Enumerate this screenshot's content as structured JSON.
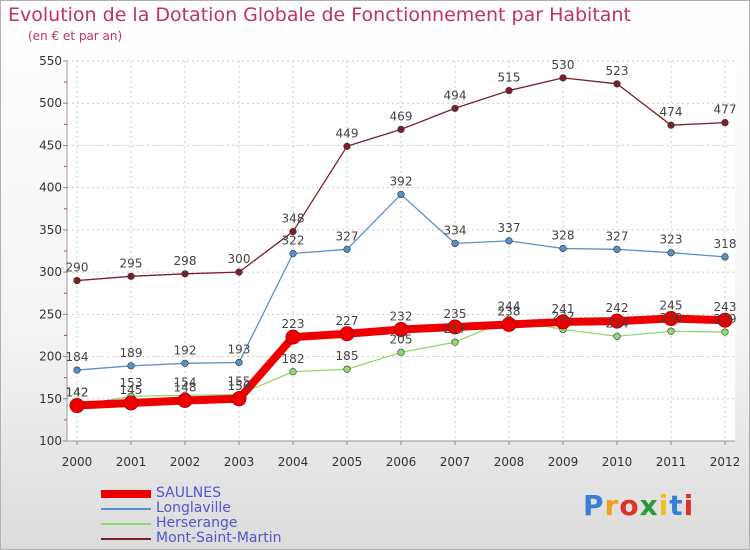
{
  "title": "Evolution de la Dotation Globale de Fonctionnement par Habitant",
  "subtitle": "(en € et par an)",
  "logo_text": "Proxiti",
  "logo_colors": [
    "#3a7fd5",
    "#f0a020",
    "#e0302a",
    "#2a9a3a",
    "#f0c020",
    "#3a7fd5",
    "#e0302a"
  ],
  "chart_data": {
    "type": "line",
    "title": "Evolution de la Dotation Globale de Fonctionnement par Habitant",
    "subtitle": "(en € et par an)",
    "xlabel": "",
    "ylabel": "",
    "ylim": [
      100,
      550
    ],
    "yticks": [
      100,
      150,
      200,
      250,
      300,
      350,
      400,
      450,
      500,
      550
    ],
    "x": [
      "2000",
      "2001",
      "2002",
      "2003",
      "2004",
      "2005",
      "2006",
      "2007",
      "2008",
      "2009",
      "2010",
      "2011",
      "2012"
    ],
    "grid": true,
    "legend_position": "bottom-left",
    "series": [
      {
        "name": "Mont-Saint-Martin",
        "color": "#7a2028",
        "line_width": 1.3,
        "values": [
          290,
          295,
          298,
          300,
          348,
          449,
          469,
          494,
          515,
          530,
          523,
          474,
          477
        ],
        "labels": [
          "290",
          "295",
          "298",
          "300",
          "348",
          "449",
          "469",
          "494",
          "515",
          "530",
          "523",
          "474",
          "477"
        ]
      },
      {
        "name": "Longlaville",
        "color": "#5a90c8",
        "line_width": 1.3,
        "values": [
          184,
          189,
          192,
          193,
          322,
          327,
          392,
          334,
          337,
          328,
          327,
          323,
          318
        ],
        "labels": [
          "184",
          "189",
          "192",
          "193",
          "322",
          "327",
          "392",
          "334",
          "337",
          "328",
          "327",
          "323",
          "318"
        ]
      },
      {
        "name": "Herserange",
        "color": "#90d870",
        "line_width": 1.3,
        "values": [
          142,
          153,
          154,
          155,
          182,
          185,
          205,
          217,
          244,
          232,
          224,
          230,
          229
        ],
        "labels": [
          "142",
          "153",
          "154",
          "155",
          "182",
          "185",
          "205",
          "217",
          "244",
          "232",
          "224",
          "230",
          "229"
        ]
      },
      {
        "name": "SAULNES",
        "color": "#ee0000",
        "line_width": 8,
        "values": [
          142,
          145,
          148,
          150,
          223,
          227,
          232,
          235,
          238,
          241,
          242,
          245,
          243
        ],
        "labels": [
          "142",
          "145",
          "148",
          "150",
          "223",
          "227",
          "232",
          "235",
          "238",
          "241",
          "242",
          "245",
          "243"
        ]
      }
    ],
    "legend": [
      "SAULNES",
      "Longlaville",
      "Herserange",
      "Mont-Saint-Martin"
    ]
  }
}
